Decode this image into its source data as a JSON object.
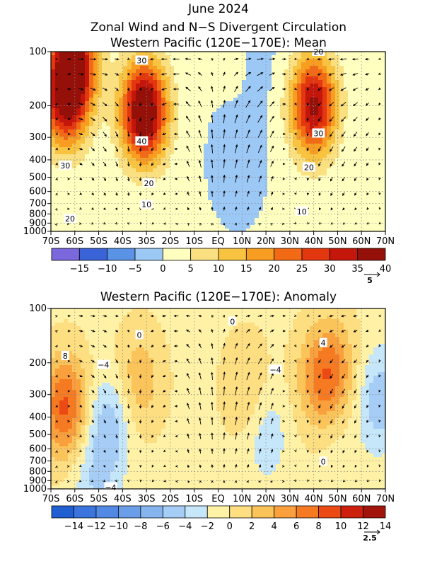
{
  "figure": {
    "title": "June 2024",
    "subtitle": "Zonal Wind and N−S Divergent Circulation"
  },
  "chart_data": [
    {
      "type": "heatmap",
      "title": "Western Pacific (120E−170E): Mean",
      "x_ticks": [
        "70S",
        "60S",
        "50S",
        "40S",
        "30S",
        "20S",
        "10S",
        "EQ",
        "10N",
        "20N",
        "30N",
        "40N",
        "50N",
        "60N",
        "70N"
      ],
      "x_range": [
        -70,
        70
      ],
      "y_ticks": [
        100,
        200,
        300,
        400,
        500,
        600,
        700,
        800,
        900,
        1000
      ],
      "y_range": [
        1000,
        100
      ],
      "y_scale": "log",
      "colorbar_labels": [
        "−15",
        "−10",
        "−5",
        "0",
        "5",
        "10",
        "15",
        "20",
        "25",
        "30",
        "35",
        "40"
      ],
      "colorbar_colors": [
        "#7b68dd",
        "#3a63d8",
        "#5a93e6",
        "#9cc8f6",
        "#ffffc0",
        "#fbe082",
        "#f8c340",
        "#f79d22",
        "#f36a16",
        "#e33710",
        "#c4160b",
        "#951008"
      ],
      "vector_reference": "5",
      "contour_labels": [
        {
          "text": "30",
          "lat": -32,
          "p": 112
        },
        {
          "text": "40",
          "lat": -32,
          "p": 315
        },
        {
          "text": "20",
          "lat": -29,
          "p": 540
        },
        {
          "text": "10",
          "lat": -30,
          "p": 710
        },
        {
          "text": "30",
          "lat": -64,
          "p": 430
        },
        {
          "text": "20",
          "lat": -62,
          "p": 850
        },
        {
          "text": "20",
          "lat": 42,
          "p": 100
        },
        {
          "text": "30",
          "lat": 42,
          "p": 285
        },
        {
          "text": "20",
          "lat": 38,
          "p": 440
        },
        {
          "text": "10",
          "lat": 35,
          "p": 775
        }
      ],
      "features": [
        {
          "lat": -64,
          "p": 180,
          "value": 34
        },
        {
          "lat": -60,
          "p": 110,
          "value": 30
        },
        {
          "lat": -31,
          "p": 215,
          "value": 44
        },
        {
          "lat": 40,
          "p": 200,
          "value": 36
        },
        {
          "lat": 8,
          "p": 400,
          "value": -4
        },
        {
          "lat": 16,
          "p": 130,
          "value": -3
        },
        {
          "lat": 12,
          "p": 140,
          "value": 2
        }
      ]
    },
    {
      "type": "heatmap",
      "title": "Western Pacific (120E−170E): Anomaly",
      "x_ticks": [
        "70S",
        "60S",
        "50S",
        "40S",
        "30S",
        "20S",
        "10S",
        "EQ",
        "10N",
        "20N",
        "30N",
        "40N",
        "50N",
        "60N",
        "70N"
      ],
      "x_range": [
        -70,
        70
      ],
      "y_ticks": [
        100,
        200,
        300,
        400,
        500,
        600,
        700,
        800,
        900,
        1000
      ],
      "y_range": [
        1000,
        100
      ],
      "y_scale": "log",
      "colorbar_labels": [
        "−14",
        "−12",
        "−10",
        "−8",
        "−6",
        "−4",
        "−2",
        "0",
        "2",
        "4",
        "6",
        "8",
        "10",
        "12",
        "14"
      ],
      "colorbar_colors": [
        "#1f5fd2",
        "#3a74dc",
        "#5289e2",
        "#6b9ee8",
        "#86b4ef",
        "#a6cdf5",
        "#c6e6f9",
        "#fff2a6",
        "#fdde80",
        "#fbc45a",
        "#f9a03c",
        "#f57a22",
        "#ec4a14",
        "#cc200d",
        "#a2140a"
      ],
      "vector_reference": "2.5",
      "contour_labels": [
        {
          "text": "8",
          "lat": -64,
          "p": 183
        },
        {
          "text": "−4",
          "lat": -48,
          "p": 205
        },
        {
          "text": "0",
          "lat": -33,
          "p": 140
        },
        {
          "text": "0",
          "lat": 6,
          "p": 118
        },
        {
          "text": "−4",
          "lat": 24,
          "p": 218
        },
        {
          "text": "4",
          "lat": 44,
          "p": 155
        },
        {
          "text": "0",
          "lat": 44,
          "p": 705
        },
        {
          "text": "−4",
          "lat": -45,
          "p": 980
        }
      ],
      "features": [
        {
          "lat": -64,
          "p": 350,
          "value": 9
        },
        {
          "lat": -46,
          "p": 450,
          "value": -5
        },
        {
          "lat": -33,
          "p": 250,
          "value": 4
        },
        {
          "lat": 12,
          "p": 280,
          "value": 3
        },
        {
          "lat": 20,
          "p": 500,
          "value": -3
        },
        {
          "lat": 41,
          "p": 250,
          "value": 4
        },
        {
          "lat": 48,
          "p": 220,
          "value": 6
        },
        {
          "lat": 68,
          "p": 320,
          "value": -5
        },
        {
          "lat": -52,
          "p": 950,
          "value": -3
        },
        {
          "lat": 52,
          "p": 700,
          "value": -1
        }
      ]
    }
  ]
}
